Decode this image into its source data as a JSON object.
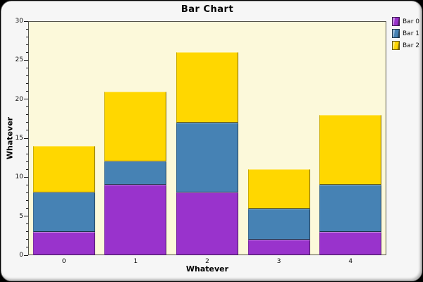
{
  "chart_data": {
    "type": "bar",
    "stacked": true,
    "title": "Bar Chart",
    "xlabel": "Whatever",
    "ylabel": "Whatever",
    "categories": [
      "0",
      "1",
      "2",
      "3",
      "4"
    ],
    "series": [
      {
        "name": "Bar 0",
        "color": "#9933CC",
        "values": [
          3,
          9,
          8,
          2,
          3
        ]
      },
      {
        "name": "Bar 1",
        "color": "#4682B4",
        "values": [
          5,
          3,
          9,
          4,
          6
        ]
      },
      {
        "name": "Bar 2",
        "color": "#FFD700",
        "values": [
          6,
          9,
          9,
          5,
          9
        ]
      }
    ],
    "stack_totals": [
      14,
      21,
      26,
      11,
      18
    ],
    "ylim": [
      0,
      30
    ],
    "y_ticks": [
      0,
      5,
      10,
      15,
      20,
      25,
      30
    ],
    "y_minor_step": 1,
    "grid": false,
    "legend_position": "top-right"
  },
  "colors": {
    "outer_bg": "#000000",
    "panel_bg": "#F6F6F6",
    "plot_bg": "#FCF9DA",
    "plot_border": "#55544A",
    "tick_color": "#1A1A1A",
    "text_color": "#000000"
  }
}
